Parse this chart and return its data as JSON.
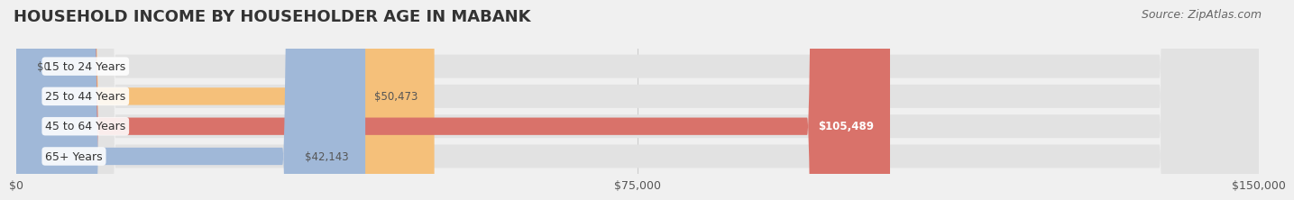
{
  "title": "HOUSEHOLD INCOME BY HOUSEHOLDER AGE IN MABANK",
  "source": "Source: ZipAtlas.com",
  "categories": [
    "15 to 24 Years",
    "25 to 44 Years",
    "45 to 64 Years",
    "65+ Years"
  ],
  "values": [
    0,
    50473,
    105489,
    42143
  ],
  "bar_colors": [
    "#f4a0b0",
    "#f5c07a",
    "#d9726a",
    "#a0b8d8"
  ],
  "label_colors": [
    "#555555",
    "#555555",
    "#ffffff",
    "#555555"
  ],
  "bg_color": "#f0f0f0",
  "bar_bg_color": "#e2e2e2",
  "xlim": [
    0,
    150000
  ],
  "xticks": [
    0,
    75000,
    150000
  ],
  "xticklabels": [
    "$0",
    "$75,000",
    "$150,000"
  ],
  "value_labels": [
    "$0",
    "$50,473",
    "$105,489",
    "$42,143"
  ],
  "title_fontsize": 13,
  "source_fontsize": 9,
  "tick_fontsize": 9,
  "label_fontsize": 8.5,
  "cat_fontsize": 9
}
